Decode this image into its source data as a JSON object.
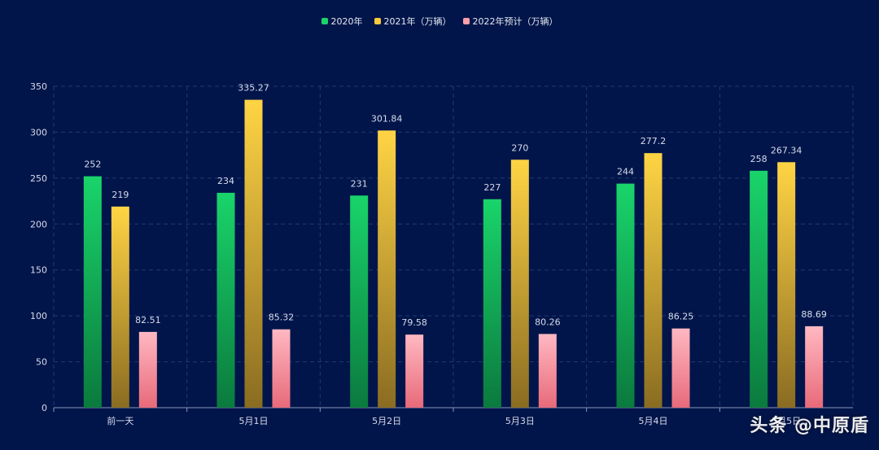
{
  "chart_data": {
    "type": "bar",
    "categories": [
      "前一天",
      "5月1日",
      "5月2日",
      "5月3日",
      "5月4日",
      "5月5日"
    ],
    "series": [
      {
        "name": "2020年",
        "values": [
          252,
          234,
          231,
          227,
          244,
          258
        ],
        "labels": [
          "252",
          "234",
          "231",
          "227",
          "244",
          "258"
        ],
        "color_top": "#19d46a",
        "color_bottom": "#0b7a3e"
      },
      {
        "name": "2021年（万辆）",
        "values": [
          219,
          335.27,
          301.84,
          270,
          277.2,
          267.34
        ],
        "labels": [
          "219",
          "335.27",
          "301.84",
          "270",
          "277.2",
          "267.34"
        ],
        "color_top": "#ffd444",
        "color_bottom": "#8a6c22"
      },
      {
        "name": "2022年预计（万辆）",
        "values": [
          82.51,
          85.32,
          79.58,
          80.26,
          86.25,
          88.69
        ],
        "labels": [
          "82.51",
          "85.32",
          "79.58",
          "80.26",
          "86.25",
          "88.69"
        ],
        "color_top": "#ffb8c2",
        "color_bottom": "#e86a7a"
      }
    ],
    "yticks": [
      "0",
      "50",
      "100",
      "150",
      "200",
      "250",
      "300",
      "350"
    ],
    "ylim": [
      0,
      350
    ],
    "grid": true,
    "legend": "top-center"
  },
  "watermark": "头条 @中原盾",
  "colors": {
    "background": "#01154a",
    "grid": "#23396e",
    "axis": "#8b98b8",
    "text": "#d7dceb"
  }
}
